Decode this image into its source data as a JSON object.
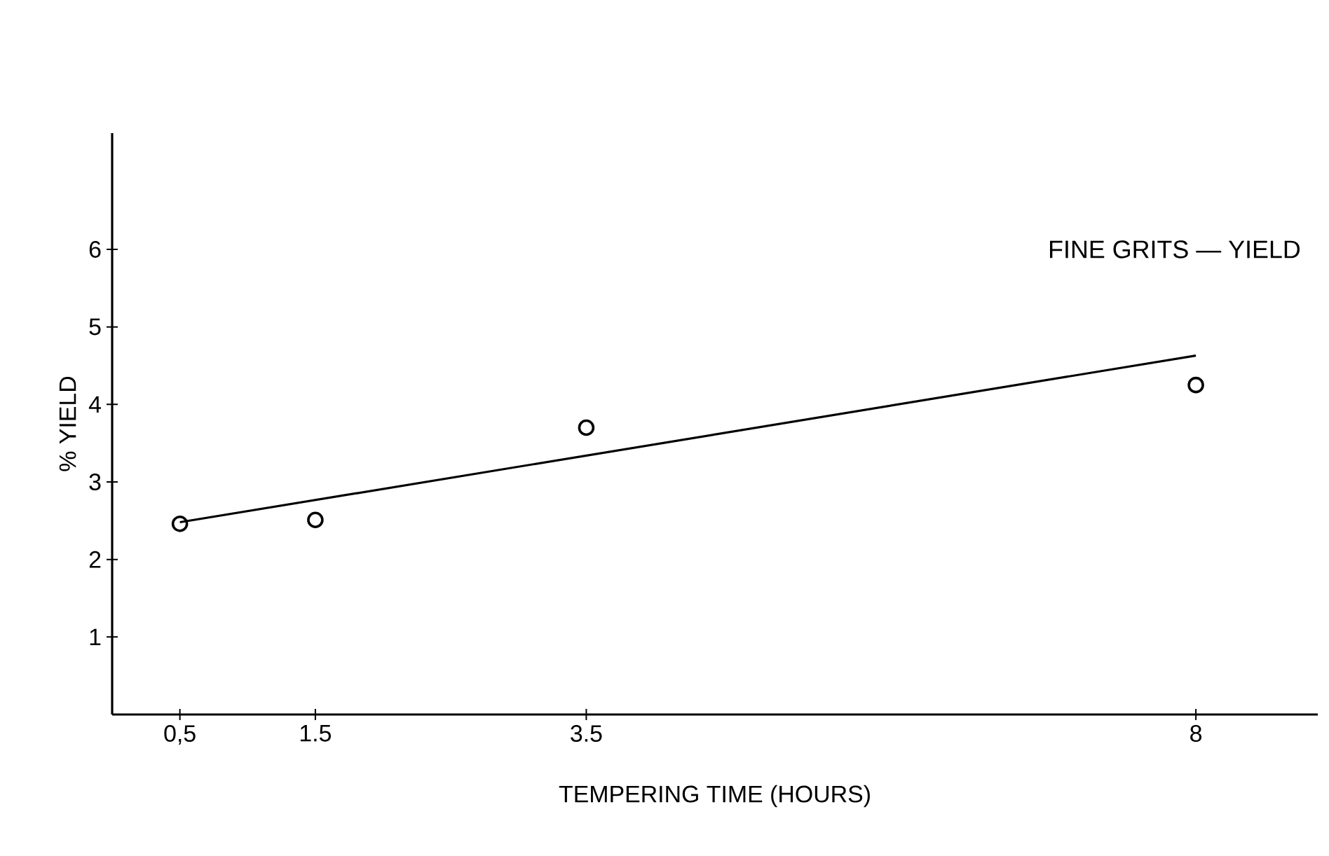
{
  "chart_data": {
    "type": "scatter",
    "title": "FINE GRITS — YIELD",
    "xlabel": "TEMPERING TIME (HOURS)",
    "ylabel": "% YIELD",
    "xlim": [
      0,
      8.9
    ],
    "ylim": [
      0,
      7.5
    ],
    "xticks": [
      {
        "value": 0.5,
        "label": "0,5"
      },
      1.5,
      3.5,
      8
    ],
    "yticks": [
      1,
      2,
      3,
      4,
      5,
      6
    ],
    "series": [
      {
        "color": "#000000",
        "marker": "circle",
        "x": [
          0.5,
          1.5,
          3.5,
          8
        ],
        "values": [
          2.46,
          2.51,
          3.7,
          4.25
        ]
      },
      {
        "type": "line",
        "color": "#000000",
        "marker": "none",
        "line_style": "solid",
        "x": [
          0.5,
          8
        ],
        "values": [
          2.48,
          4.63
        ]
      }
    ]
  }
}
